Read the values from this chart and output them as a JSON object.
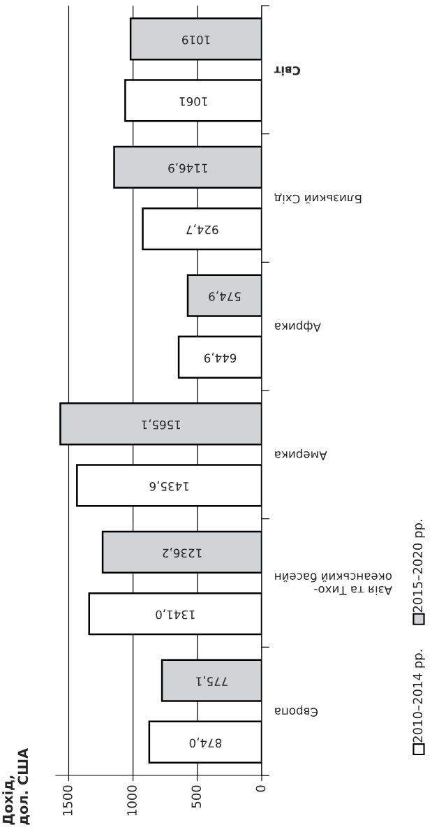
{
  "chart_data": {
    "type": "bar",
    "orientation": "horizontal",
    "ylabel": "Дохід,\nдол. США",
    "categories": [
      "Світ",
      "Близький Схід",
      "Африка",
      "Америка",
      "Азія та Тихо-\nокеанський басейн",
      "Європа"
    ],
    "series": [
      {
        "name": "2010–2014 рр.",
        "color": "#ffffff",
        "values": [
          1061,
          924.7,
          644.9,
          1435.6,
          1341.0,
          874.0
        ],
        "value_labels": [
          "1061",
          "924,7",
          "644,9",
          "1435,6",
          "1341,0",
          "874,0"
        ]
      },
      {
        "name": "2015–2020 рр.",
        "color": "#d1d3d4",
        "values": [
          1019,
          1146.9,
          574.9,
          1565.1,
          1236.2,
          775.1
        ],
        "value_labels": [
          "1019",
          "1146,9",
          "574,9",
          "1565,1",
          "1236,2",
          "775,1"
        ]
      }
    ],
    "xlim": [
      1600,
      0
    ],
    "xticks": [
      0,
      500,
      1000,
      1500
    ],
    "grid": "x",
    "legend": "right"
  }
}
